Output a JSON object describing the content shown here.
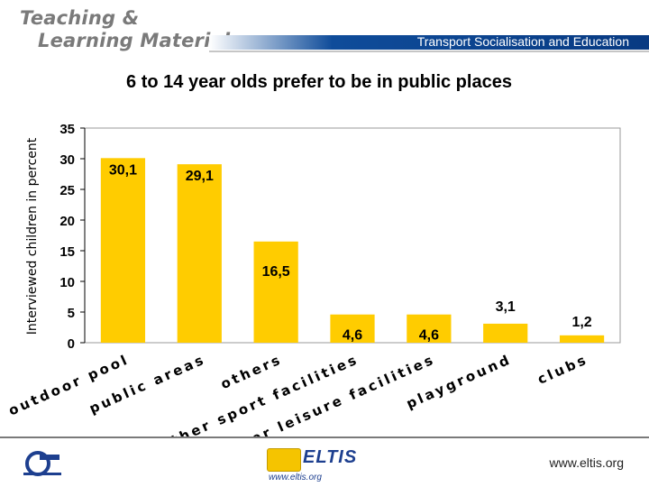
{
  "header": {
    "logo_line1": "Teaching &",
    "logo_line2": "Learning Materials",
    "title": "Transport Socialisation and Education"
  },
  "footer": {
    "url": "www.eltis.org",
    "eltis_logo": "ELTIS",
    "eltis_url": "www.eltis.org"
  },
  "chart_data": {
    "type": "bar",
    "title": "6 to 14 year olds prefer to be in public places",
    "ylabel": "Interviewed children in percent",
    "xlabel": "",
    "ylim": [
      0,
      35
    ],
    "yticks": [
      0,
      5,
      10,
      15,
      20,
      25,
      30,
      35
    ],
    "categories": [
      "outdoor pool",
      "public areas",
      "others",
      "other sport facilities",
      "other leisure facilities",
      "playground",
      "clubs"
    ],
    "values": [
      30.1,
      29.1,
      16.5,
      4.6,
      4.6,
      3.1,
      1.2
    ],
    "data_labels": [
      "30,1",
      "29,1",
      "16,5",
      "4,6",
      "4,6",
      "3,1",
      "1,2"
    ],
    "bar_color": "#ffcc00",
    "grid": false,
    "legend": "none"
  }
}
